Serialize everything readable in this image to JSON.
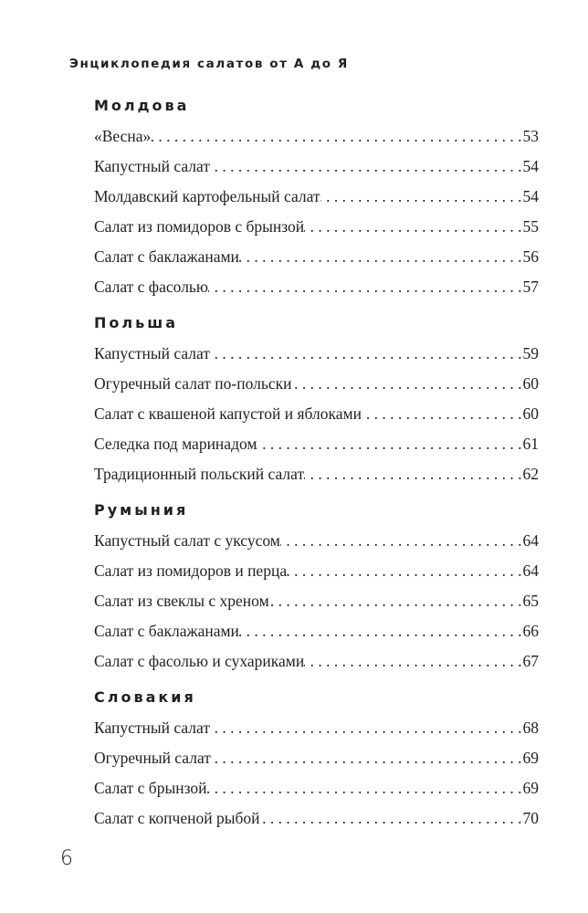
{
  "running_head": "Энциклопедия салатов от А до Я",
  "sections": [
    {
      "heading": "Молдова",
      "entries": [
        {
          "title": "«Весна»",
          "page": "53"
        },
        {
          "title": "Капустный салат",
          "page": "54"
        },
        {
          "title": "Молдавский картофельный салат",
          "page": "54"
        },
        {
          "title": "Салат из помидоров с брынзой",
          "page": "55"
        },
        {
          "title": "Салат с баклажанами",
          "page": "56"
        },
        {
          "title": "Салат с фасолью",
          "page": "57"
        }
      ]
    },
    {
      "heading": "Польша",
      "entries": [
        {
          "title": "Капустный салат",
          "page": "59"
        },
        {
          "title": "Огуречный салат по-польски",
          "page": "60"
        },
        {
          "title": "Салат с квашеной капустой и яблоками",
          "page": "60"
        },
        {
          "title": "Селедка под маринадом",
          "page": "61"
        },
        {
          "title": "Традиционный польский салат",
          "page": "62"
        }
      ]
    },
    {
      "heading": "Румыния",
      "entries": [
        {
          "title": "Капустный салат с уксусом",
          "page": "64"
        },
        {
          "title": "Салат из помидоров и перца",
          "page": "64"
        },
        {
          "title": "Салат из свеклы с хреном",
          "page": "65"
        },
        {
          "title": "Салат с баклажанами",
          "page": "66"
        },
        {
          "title": "Салат с фасолью и сухариками",
          "page": "67"
        }
      ]
    },
    {
      "heading": "Словакия",
      "entries": [
        {
          "title": "Капустный салат",
          "page": "68"
        },
        {
          "title": "Огуречный салат",
          "page": "69"
        },
        {
          "title": "Салат с брынзой",
          "page": "69"
        },
        {
          "title": "Салат с копченой рыбой",
          "page": "70"
        }
      ]
    }
  ],
  "page_number": "6"
}
